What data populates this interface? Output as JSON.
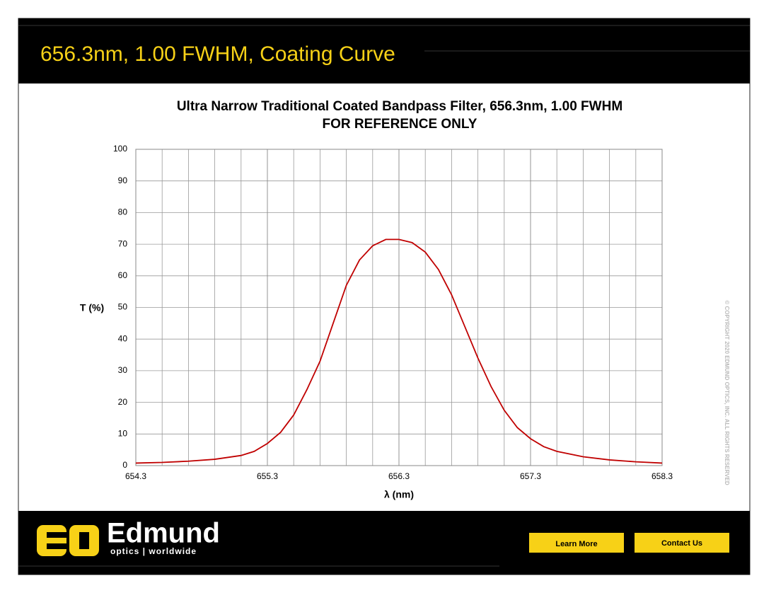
{
  "header": {
    "title": "656.3nm, 1.00 FWHM, Coating Curve"
  },
  "chart_data": {
    "type": "line",
    "title": "Ultra Narrow Traditional Coated Bandpass Filter, 656.3nm, 1.00 FWHM",
    "subtitle": "FOR REFERENCE ONLY",
    "y_label": "T (%)",
    "x_label": "λ (nm)",
    "color": "#c00000",
    "x": [
      654.3,
      654.5,
      654.7,
      654.9,
      655.1,
      655.2,
      655.3,
      655.4,
      655.5,
      655.6,
      655.7,
      655.8,
      655.9,
      656.0,
      656.1,
      656.2,
      656.3,
      656.4,
      656.5,
      656.6,
      656.7,
      656.8,
      656.9,
      657.0,
      657.1,
      657.2,
      657.3,
      657.4,
      657.5,
      657.7,
      657.9,
      658.1,
      658.3
    ],
    "values": [
      0.8,
      1.0,
      1.4,
      2.0,
      3.2,
      4.5,
      7,
      10.5,
      16,
      24,
      33,
      45,
      57,
      65,
      69.5,
      71.5,
      71.5,
      70.5,
      67.5,
      62,
      54,
      44,
      34,
      25,
      17.5,
      12,
      8.5,
      6,
      4.5,
      2.8,
      1.8,
      1.2,
      0.8
    ],
    "xlim": [
      654.3,
      658.3
    ],
    "ylim": [
      0,
      100
    ],
    "xticks": [
      654.3,
      655.3,
      656.3,
      657.3,
      658.3
    ],
    "xminorticks": [
      654.5,
      654.7,
      654.9,
      655.1,
      655.5,
      655.7,
      655.9,
      656.1,
      656.5,
      656.7,
      656.9,
      657.1,
      657.5,
      657.7,
      657.9,
      658.1
    ],
    "yticks": [
      0,
      10,
      20,
      30,
      40,
      50,
      60,
      70,
      80,
      90,
      100
    ],
    "grid": true
  },
  "footer": {
    "brand": "Edmund",
    "tagline": "optics | worldwide",
    "buttons": [
      "Learn More",
      "Contact Us"
    ]
  },
  "copyright": "© COPYRIGHT 2020 EDMUND OPTICS, INC. ALL RIGHTS RESERVED"
}
